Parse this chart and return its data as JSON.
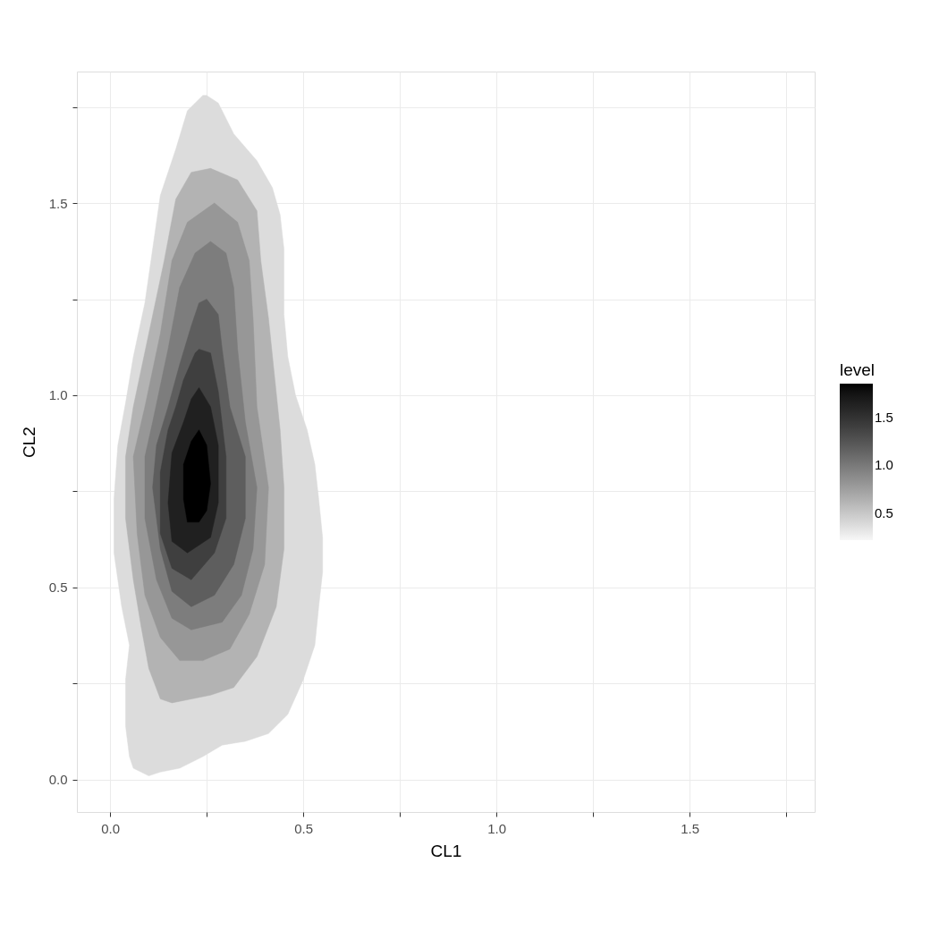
{
  "chart_data": {
    "type": "area",
    "xlabel": "CL1",
    "ylabel": "CL2",
    "clabel": "level",
    "xlim": [
      -0.086,
      1.824
    ],
    "ylim": [
      -0.084,
      1.842
    ],
    "xticks": [
      {
        "value": 0.0,
        "label": "0.0"
      },
      {
        "value": 0.25,
        "label": null
      },
      {
        "value": 0.5,
        "label": "0.5"
      },
      {
        "value": 0.75,
        "label": null
      },
      {
        "value": 1.0,
        "label": "1.0"
      },
      {
        "value": 1.25,
        "label": null
      },
      {
        "value": 1.5,
        "label": "1.5"
      },
      {
        "value": 1.75,
        "label": null
      }
    ],
    "yticks": [
      {
        "value": 0.0,
        "label": "0.0"
      },
      {
        "value": 0.25,
        "label": null
      },
      {
        "value": 0.5,
        "label": "0.5"
      },
      {
        "value": 0.75,
        "label": null
      },
      {
        "value": 1.0,
        "label": "1.0"
      },
      {
        "value": 1.25,
        "label": null
      },
      {
        "value": 1.5,
        "label": "1.5"
      },
      {
        "value": 1.75,
        "label": null
      }
    ],
    "clim": [
      0.22,
      1.85
    ],
    "cticks": [
      {
        "value": 0.5,
        "label": "0.5"
      },
      {
        "value": 1.0,
        "label": "1.0"
      },
      {
        "value": 1.5,
        "label": "1.5"
      }
    ],
    "grid": true,
    "series": [
      {
        "color": "#dcdcdc",
        "x": [
          0.25,
          0.28,
          0.32,
          0.38,
          0.42,
          0.44,
          0.45,
          0.45,
          0.46,
          0.48,
          0.51,
          0.53,
          0.54,
          0.55,
          0.55,
          0.54,
          0.53,
          0.5,
          0.46,
          0.41,
          0.35,
          0.29,
          0.24,
          0.18,
          0.13,
          0.1,
          0.06,
          0.05,
          0.04,
          0.04,
          0.05,
          0.03,
          0.01,
          0.01,
          0.02,
          0.04,
          0.06,
          0.09,
          0.11,
          0.13,
          0.17,
          0.2,
          0.24
        ],
        "values": [
          1.78,
          1.76,
          1.68,
          1.61,
          1.54,
          1.47,
          1.38,
          1.21,
          1.1,
          1.0,
          0.91,
          0.82,
          0.73,
          0.63,
          0.54,
          0.45,
          0.35,
          0.26,
          0.17,
          0.12,
          0.1,
          0.09,
          0.06,
          0.03,
          0.02,
          0.01,
          0.03,
          0.06,
          0.14,
          0.26,
          0.35,
          0.45,
          0.59,
          0.73,
          0.87,
          0.98,
          1.1,
          1.24,
          1.38,
          1.52,
          1.64,
          1.74,
          1.78
        ]
      },
      {
        "color": "#b3b3b3",
        "x": [
          0.26,
          0.33,
          0.38,
          0.39,
          0.41,
          0.44,
          0.45,
          0.45,
          0.43,
          0.38,
          0.32,
          0.26,
          0.16,
          0.13,
          0.1,
          0.08,
          0.06,
          0.04,
          0.04,
          0.06,
          0.1,
          0.14,
          0.17,
          0.21
        ],
        "values": [
          1.59,
          1.56,
          1.48,
          1.35,
          1.2,
          0.91,
          0.76,
          0.6,
          0.45,
          0.32,
          0.24,
          0.22,
          0.2,
          0.21,
          0.29,
          0.4,
          0.52,
          0.68,
          0.84,
          0.97,
          1.16,
          1.35,
          1.51,
          1.58
        ]
      },
      {
        "color": "#979797",
        "x": [
          0.27,
          0.33,
          0.36,
          0.37,
          0.38,
          0.41,
          0.4,
          0.36,
          0.31,
          0.24,
          0.18,
          0.13,
          0.09,
          0.07,
          0.06,
          0.09,
          0.13,
          0.16,
          0.2
        ],
        "values": [
          1.5,
          1.45,
          1.35,
          1.2,
          0.97,
          0.76,
          0.56,
          0.43,
          0.34,
          0.31,
          0.31,
          0.37,
          0.48,
          0.64,
          0.84,
          0.97,
          1.16,
          1.35,
          1.45
        ]
      },
      {
        "color": "#7d7d7d",
        "x": [
          0.26,
          0.3,
          0.32,
          0.33,
          0.35,
          0.38,
          0.37,
          0.34,
          0.29,
          0.21,
          0.16,
          0.12,
          0.09,
          0.09,
          0.11,
          0.15,
          0.18,
          0.22
        ],
        "values": [
          1.4,
          1.37,
          1.28,
          1.12,
          0.93,
          0.76,
          0.6,
          0.48,
          0.41,
          0.39,
          0.42,
          0.52,
          0.68,
          0.84,
          0.93,
          1.12,
          1.28,
          1.37
        ]
      },
      {
        "color": "#5e5e5e",
        "x": [
          0.25,
          0.28,
          0.29,
          0.31,
          0.35,
          0.35,
          0.32,
          0.27,
          0.21,
          0.16,
          0.13,
          0.11,
          0.12,
          0.15,
          0.18,
          0.21,
          0.23
        ],
        "values": [
          1.25,
          1.21,
          1.12,
          0.97,
          0.84,
          0.68,
          0.56,
          0.48,
          0.45,
          0.49,
          0.6,
          0.76,
          0.87,
          0.97,
          1.08,
          1.18,
          1.24
        ]
      },
      {
        "color": "#3f3f3f",
        "x": [
          0.23,
          0.26,
          0.28,
          0.3,
          0.3,
          0.27,
          0.21,
          0.16,
          0.13,
          0.13,
          0.15,
          0.17,
          0.19,
          0.22
        ],
        "values": [
          1.12,
          1.11,
          1.01,
          0.84,
          0.68,
          0.59,
          0.52,
          0.55,
          0.64,
          0.8,
          0.91,
          0.97,
          1.04,
          1.11
        ]
      },
      {
        "color": "#202020",
        "x": [
          0.23,
          0.26,
          0.28,
          0.28,
          0.26,
          0.2,
          0.16,
          0.15,
          0.16,
          0.19,
          0.21
        ],
        "values": [
          1.02,
          0.97,
          0.87,
          0.72,
          0.63,
          0.59,
          0.62,
          0.72,
          0.85,
          0.93,
          0.99
        ]
      },
      {
        "color": "#000000",
        "x": [
          0.23,
          0.25,
          0.26,
          0.25,
          0.23,
          0.2,
          0.19,
          0.19,
          0.21
        ],
        "values": [
          0.91,
          0.87,
          0.77,
          0.7,
          0.67,
          0.67,
          0.73,
          0.82,
          0.88
        ]
      }
    ]
  }
}
